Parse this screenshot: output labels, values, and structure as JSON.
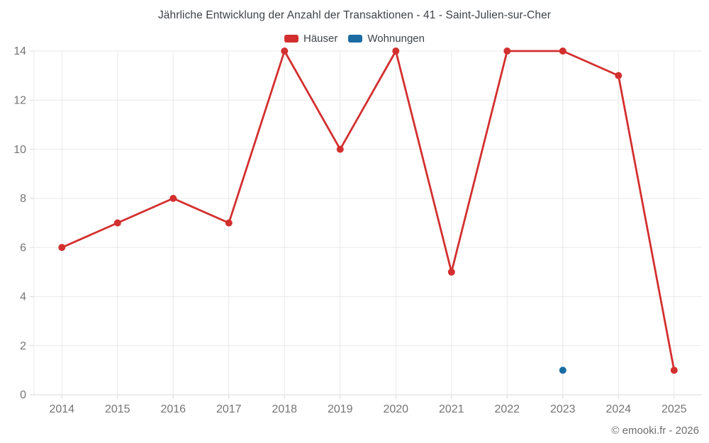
{
  "chart_data": {
    "type": "line",
    "title": "Jährliche Entwicklung der Anzahl der Transaktionen - 41 - Saint-Julien-sur-Cher",
    "categories": [
      "2014",
      "2015",
      "2016",
      "2017",
      "2018",
      "2019",
      "2020",
      "2021",
      "2022",
      "2023",
      "2024",
      "2025"
    ],
    "series": [
      {
        "name": "Häuser",
        "color": "#d32f2f",
        "values": [
          6,
          7,
          8,
          7,
          14,
          10,
          14,
          5,
          14,
          14,
          13,
          1
        ]
      },
      {
        "name": "Wohnungen",
        "color": "#1b6ca3",
        "values": [
          null,
          null,
          null,
          null,
          null,
          null,
          null,
          null,
          null,
          1,
          null,
          null
        ]
      }
    ],
    "ylim": [
      0,
      14
    ],
    "ytick_step": 2,
    "yticks": [
      0,
      2,
      4,
      6,
      8,
      10,
      12,
      14
    ],
    "grid": true,
    "legend_position": "top",
    "xlabel": "",
    "ylabel": ""
  },
  "colors": {
    "grid_line": "#e9e9e9",
    "axis_line": "#d9d9d9",
    "tick_label": "#757575"
  },
  "footer": {
    "copyright": "© emooki.fr - 2026"
  }
}
